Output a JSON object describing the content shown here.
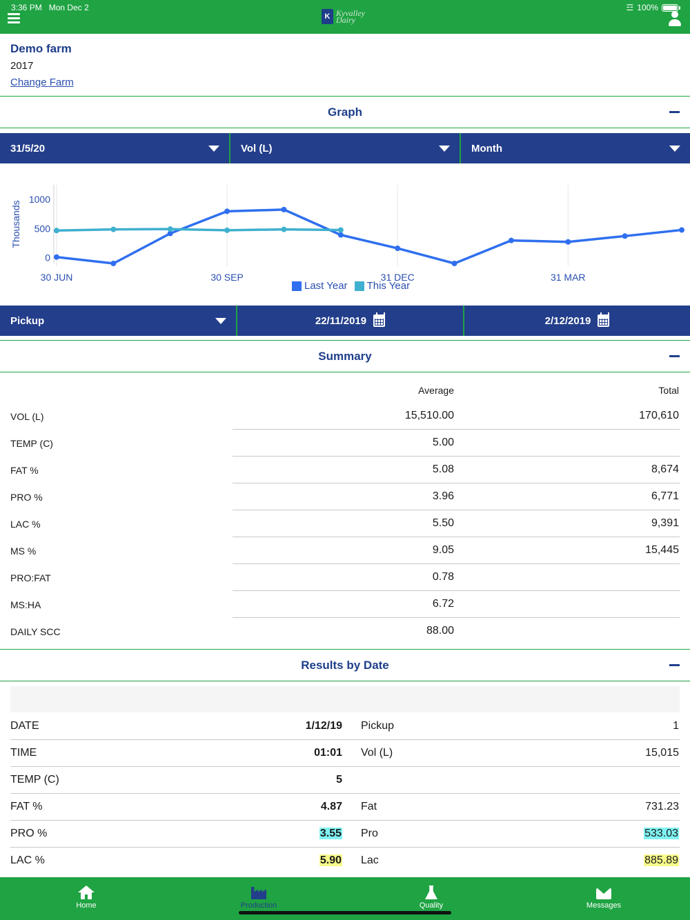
{
  "status": {
    "time": "3:36 PM",
    "date": "Mon Dec 2",
    "battery": "100%"
  },
  "app": {
    "logo_line1": "Kyvalley",
    "logo_line2": "Dairy"
  },
  "farm": {
    "name": "Demo farm",
    "year": "2017",
    "change_label": "Change Farm"
  },
  "graph_section": {
    "title": "Graph",
    "selectors": {
      "date": "31/5/20",
      "metric": "Vol (L)",
      "period": "Month"
    }
  },
  "chart_data": {
    "type": "line",
    "ylabel": "Thousands",
    "xlabel": "",
    "y_ticks": [
      "1000",
      "500",
      "0"
    ],
    "ylim": [
      -100,
      1250
    ],
    "x_tick_labels": [
      "30 JUN",
      "30 SEP",
      "31 DEC",
      "31 MAR"
    ],
    "x_tick_positions": [
      0,
      3,
      6,
      9
    ],
    "xlim": [
      0,
      11
    ],
    "grid": "vertical",
    "legend": "bottom-center",
    "series": [
      {
        "name": "Last Year",
        "color": "#2f6fef",
        "x": [
          0,
          1,
          2,
          3,
          4,
          5,
          6,
          7,
          8,
          9,
          10,
          11
        ],
        "y": [
          10,
          -100,
          415,
          795,
          825,
          390,
          160,
          -100,
          295,
          270,
          370,
          475
        ]
      },
      {
        "name": "This Year",
        "color": "#3fb0cf",
        "x": [
          0,
          1,
          2,
          3,
          4,
          5
        ],
        "y": [
          465,
          485,
          490,
          470,
          485,
          475
        ]
      }
    ]
  },
  "filter_bar": {
    "type": "Pickup",
    "from_date": "22/11/2019",
    "to_date": "2/12/2019"
  },
  "summary": {
    "title": "Summary",
    "col_average": "Average",
    "col_total": "Total",
    "rows": [
      {
        "label": "VOL (L)",
        "average": "15,510.00",
        "total": "170,610"
      },
      {
        "label": "TEMP (C)",
        "average": "5.00",
        "total": ""
      },
      {
        "label": "FAT  %",
        "average": "5.08",
        "total": "8,674"
      },
      {
        "label": "PRO  %",
        "average": "3.96",
        "total": "6,771"
      },
      {
        "label": "LAC  %",
        "average": "5.50",
        "total": "9,391"
      },
      {
        "label": "MS  %",
        "average": "9.05",
        "total": "15,445"
      },
      {
        "label": "PRO:FAT",
        "average": "0.78",
        "total": ""
      },
      {
        "label": "MS:HA",
        "average": "6.72",
        "total": ""
      },
      {
        "label": "DAILY SCC",
        "average": "88.00",
        "total": ""
      }
    ]
  },
  "results": {
    "title": "Results by Date",
    "rows": [
      {
        "l1": "DATE",
        "v1": "1/12/19",
        "l2": "Pickup",
        "v2": "1",
        "hl": ""
      },
      {
        "l1": "TIME",
        "v1": "01:01",
        "l2": "Vol (L)",
        "v2": "15,015",
        "hl": ""
      },
      {
        "l1": "TEMP (C)",
        "v1": "5",
        "l2": "",
        "v2": "",
        "hl": ""
      },
      {
        "l1": "FAT  %",
        "v1": "4.87",
        "l2": "Fat",
        "v2": "731.23",
        "hl": ""
      },
      {
        "l1": "PRO  %",
        "v1": "3.55",
        "l2": "Pro",
        "v2": "533.03",
        "hl": "cyan"
      },
      {
        "l1": "LAC  %",
        "v1": "5.90",
        "l2": "Lac",
        "v2": "885.89",
        "hl": "yellow"
      }
    ]
  },
  "tabs": [
    {
      "label": "Home",
      "icon": "home-icon",
      "active": false
    },
    {
      "label": "Production",
      "icon": "factory-icon",
      "active": true
    },
    {
      "label": "Quality",
      "icon": "flask-icon",
      "active": false
    },
    {
      "label": "Messages",
      "icon": "envelope-icon",
      "active": false
    }
  ]
}
